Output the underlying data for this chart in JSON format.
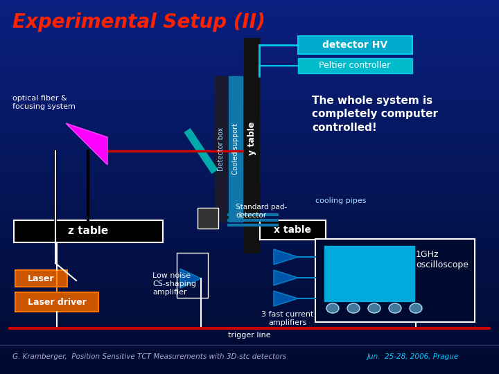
{
  "title": "Experimental Setup (II)",
  "title_color": "#ff2200",
  "bg_color": "#0a1a6e",
  "bg_gradient_top": "#000a2e",
  "bg_gradient_bottom": "#0a2080",
  "footer_text": "G. Kramberger,  Position Sensitive TCT Measurements with 3D-stc detectors",
  "footer_text2": "Jun.  25-28, 2006, Prague",
  "footer_color": "#aaaacc",
  "footer_color2": "#00ccff",
  "trigger_line_color": "#cc0000",
  "detector_hv_label": "detector HV",
  "peltier_label": "Peltier controller",
  "ytable_label": "y table",
  "xtable_label": "x table",
  "ztable_label": "z table",
  "cooled_support_label": "Cooled support",
  "detector_box_label": "Detector box",
  "cooling_pipes_label": "cooling pipes",
  "standard_pad_label": "Standard pad-\ndetector",
  "low_noise_label": "Low noise\nCS-shaping\namplifier",
  "three_fast_label": "3 fast current\namplifiers",
  "oscilloscope_label": "1GHz\noscilloscope",
  "whole_system_label": "The whole system is\ncompletely computer\ncontrolled!",
  "laser_label": "Laser",
  "laser_driver_label": "Laser driver",
  "optical_fiber_label": "optical fiber &\nfocusing system"
}
